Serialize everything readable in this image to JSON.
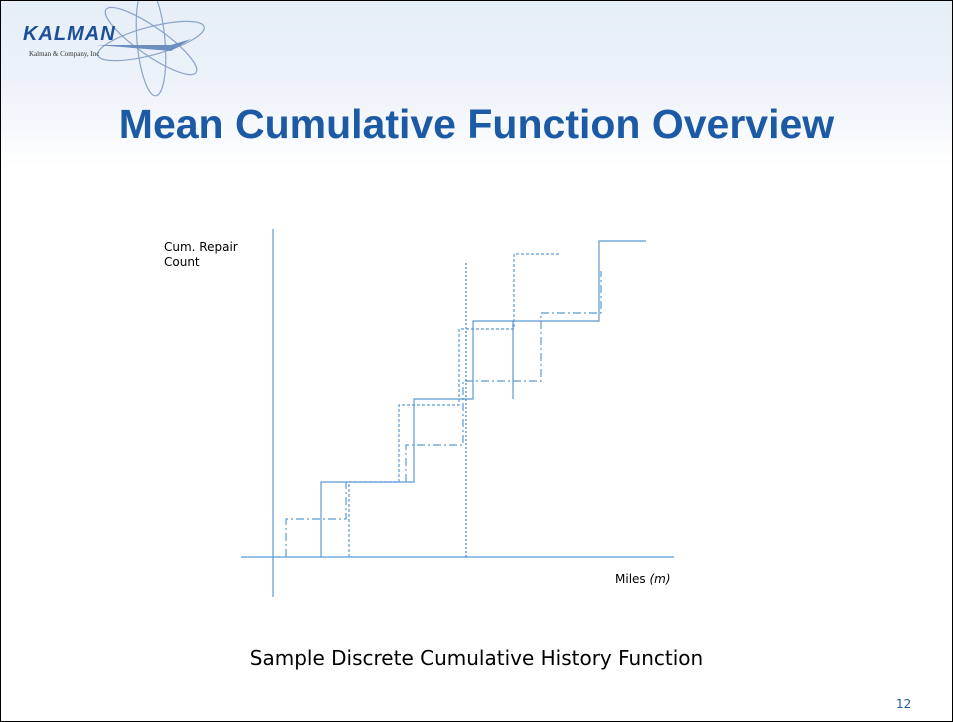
{
  "header": {
    "logo": "KALMAN",
    "logo_subtitle": "Kalman & Company, Inc",
    "title": "Mean Cumulative Function Overview"
  },
  "diagram": {
    "y_label": [
      "Cum. Repair",
      "Count"
    ],
    "x_label": "Miles",
    "x_label_symbol": "(m)",
    "caption": "Sample Discrete Cumulative History Function"
  },
  "footer": {
    "page_number": "12"
  }
}
